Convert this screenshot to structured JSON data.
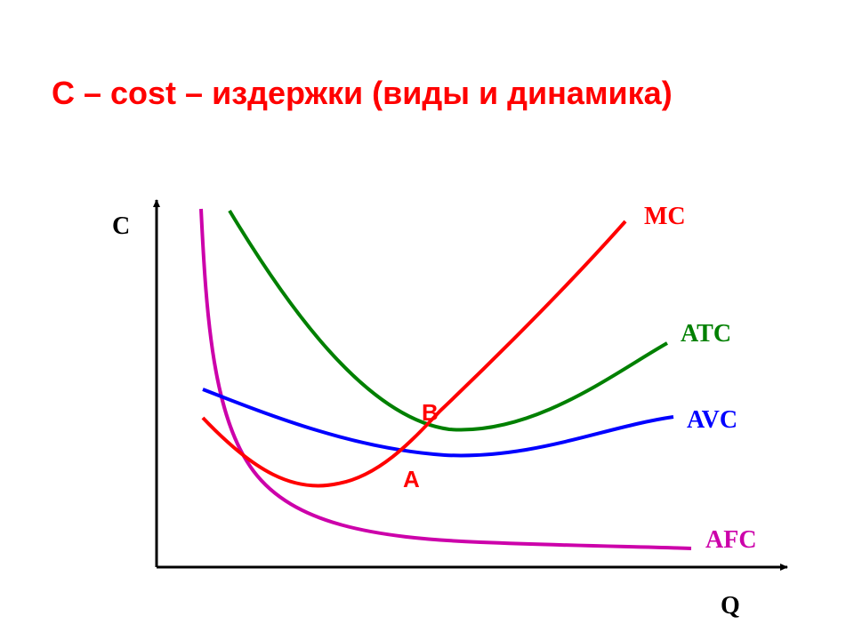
{
  "title": "C – cost – издержки (виды и динамика)",
  "axes": {
    "y_label": "C",
    "x_label": "Q"
  },
  "curves": [
    {
      "key": "mc",
      "label": "MC",
      "color": "#ff0000"
    },
    {
      "key": "atc",
      "label": "ATC",
      "color": "#008000"
    },
    {
      "key": "avc",
      "label": "AVC",
      "color": "#0000ff"
    },
    {
      "key": "afc",
      "label": "AFC",
      "color": "#cc00aa"
    }
  ],
  "points": [
    {
      "key": "a",
      "label": "A"
    },
    {
      "key": "b",
      "label": "B"
    }
  ]
}
